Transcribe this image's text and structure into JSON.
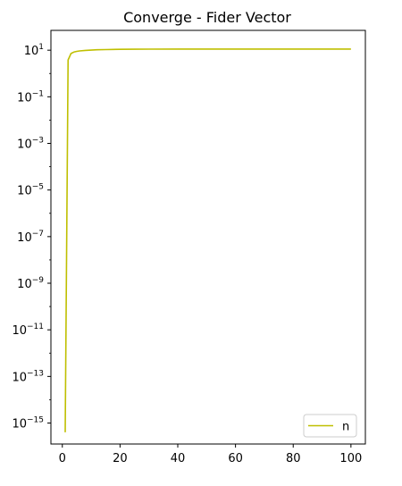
{
  "chart_data": {
    "type": "line",
    "title": "Converge - Fider Vector",
    "xlabel": "",
    "ylabel": "",
    "yscale": "log",
    "xlim": [
      -3.95,
      105
    ],
    "ylim_exp": [
      -15.9,
      1.85
    ],
    "grid": false,
    "legend_position": "lower-right",
    "x_ticks": [
      0,
      20,
      40,
      60,
      80,
      100
    ],
    "x_tick_labels": [
      "0",
      "20",
      "40",
      "60",
      "80",
      "100"
    ],
    "y_ticks": [
      {
        "value": 10,
        "base": "10",
        "exp": "1"
      },
      {
        "value": 0.1,
        "base": "10",
        "exp": "−1"
      },
      {
        "value": 0.001,
        "base": "10",
        "exp": "−3"
      },
      {
        "value": 1e-05,
        "base": "10",
        "exp": "−5"
      },
      {
        "value": 1e-07,
        "base": "10",
        "exp": "−7"
      },
      {
        "value": 1e-09,
        "base": "10",
        "exp": "−9"
      },
      {
        "value": 1e-11,
        "base": "10",
        "exp": "−11"
      },
      {
        "value": 1e-13,
        "base": "10",
        "exp": "−13"
      },
      {
        "value": 1e-15,
        "base": "10",
        "exp": "−15"
      }
    ],
    "series": [
      {
        "name": "n",
        "color": "#bfbf00",
        "x": [
          1,
          2,
          3,
          4,
          5,
          6,
          8,
          10,
          12,
          15,
          20,
          25,
          30,
          40,
          50,
          60,
          70,
          80,
          90,
          100
        ],
        "y": [
          4e-16,
          3.8,
          7.2,
          8.3,
          8.9,
          9.3,
          9.8,
          10.1,
          10.4,
          10.6,
          10.9,
          11.0,
          11.1,
          11.2,
          11.2,
          11.2,
          11.2,
          11.2,
          11.2,
          11.2
        ]
      }
    ]
  }
}
